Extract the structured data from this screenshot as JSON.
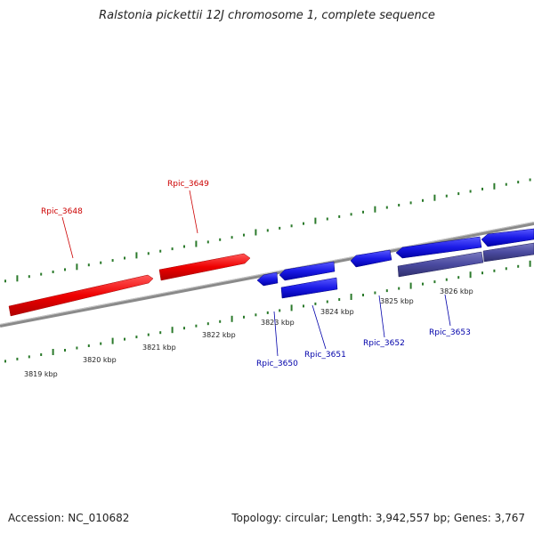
{
  "title": "Ralstonia pickettii 12J chromosome 1, complete sequence",
  "footer": {
    "accession": "Accession: NC_010682",
    "summary": "Topology: circular; Length: 3,942,557 bp; Genes: 3,767"
  },
  "colors": {
    "forward_gene": "#ee0000",
    "reverse_gene": "#1a1ae6",
    "highlight_gene": "#4a4aa0",
    "backbone": "#8a8a8a",
    "ticks": "#2b7a2b",
    "red_label": "#cc0000",
    "blue_label": "#0000aa"
  },
  "kbp_labels": [
    "3819 kbp",
    "3820 kbp",
    "3821 kbp",
    "3822 kbp",
    "3823 kbp",
    "3824 kbp",
    "3825 kbp",
    "3826 kbp"
  ],
  "genes": {
    "forward": [
      "Rpic_3648",
      "Rpic_3649"
    ],
    "reverse": [
      "Rpic_3650",
      "Rpic_3651",
      "Rpic_3652",
      "Rpic_3653"
    ]
  }
}
